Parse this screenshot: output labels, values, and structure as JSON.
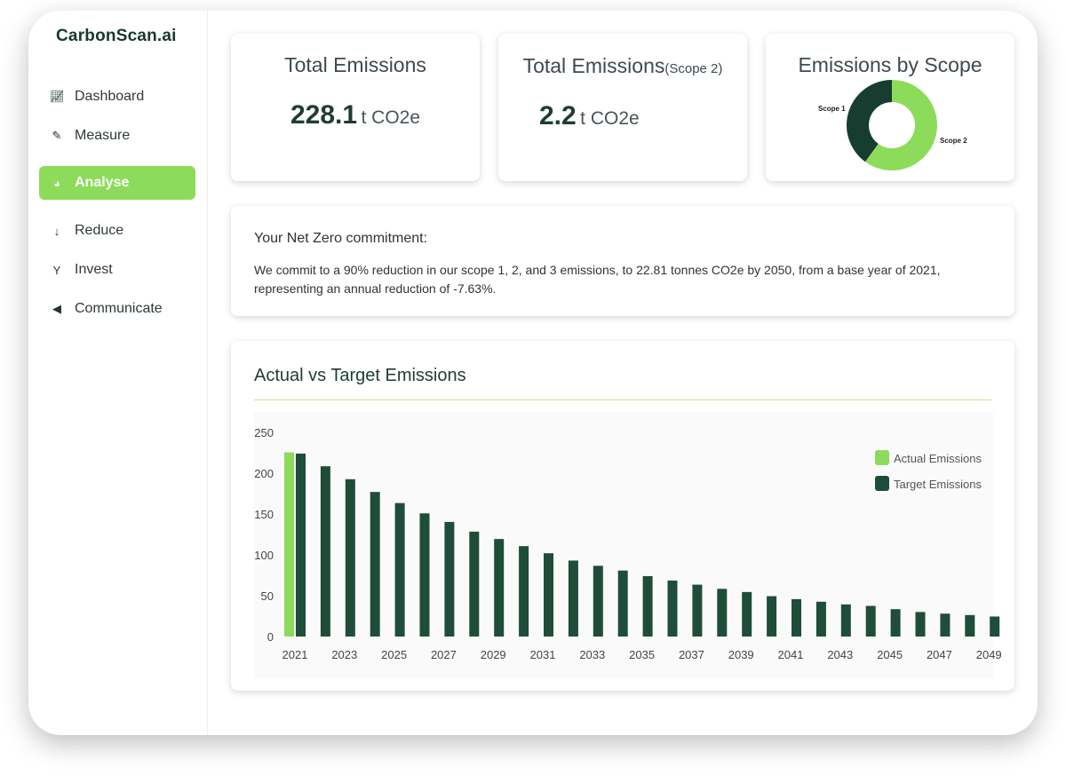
{
  "app": {
    "logo": "CarbonScan.ai"
  },
  "sidebar": {
    "items": [
      {
        "label": "Dashboard",
        "icon": "line-chart-icon",
        "active": false
      },
      {
        "label": "Measure",
        "icon": "ruler-icon",
        "active": false
      },
      {
        "label": "Analyse",
        "icon": "pie-chart-icon",
        "active": true
      },
      {
        "label": "Reduce",
        "icon": "arrow-down-icon",
        "active": false
      },
      {
        "label": "Invest",
        "icon": "sprout-icon",
        "active": false
      },
      {
        "label": "Communicate",
        "icon": "megaphone-icon",
        "active": false
      }
    ]
  },
  "cards": {
    "total": {
      "title": "Total Emissions",
      "value": "228.1",
      "unit": "t CO2e"
    },
    "scope2": {
      "title": "Total Emissions",
      "subtitle": "(Scope 2)",
      "value": "2.2",
      "unit": "t CO2e"
    },
    "by_scope": {
      "title": "Emissions by Scope"
    }
  },
  "commitment": {
    "heading": "Your Net Zero commitment:",
    "text": "We commit to a 90% reduction in our scope 1, 2, and 3 emissions, to 22.81 tonnes CO2e by 2050, from a base year of 2021, representing an annual reduction of -7.63%."
  },
  "colors": {
    "accent": "#8ddb5a",
    "dark": "#1e4d3a",
    "donut_dark": "#173d31"
  },
  "chart_data": [
    {
      "type": "pie",
      "donut": true,
      "categories": [
        "Scope 1",
        "Scope 2"
      ],
      "values": [
        40,
        60
      ],
      "colors": [
        "#173d31",
        "#8ddb5a"
      ]
    },
    {
      "type": "bar",
      "title": "Actual vs Target Emissions",
      "legend": "top-right",
      "ylim": [
        0,
        250
      ],
      "yticks": [
        0,
        50,
        100,
        150,
        200,
        250
      ],
      "categories": [
        2021,
        2022,
        2023,
        2024,
        2025,
        2026,
        2027,
        2028,
        2029,
        2030,
        2031,
        2032,
        2033,
        2034,
        2035,
        2036,
        2037,
        2038,
        2039,
        2040,
        2041,
        2042,
        2043,
        2044,
        2045,
        2046,
        2047,
        2048,
        2049
      ],
      "xtick_labels": [
        "2021",
        "2023",
        "2025",
        "2027",
        "2029",
        "2031",
        "2033",
        "2035",
        "2037",
        "2039",
        "2041",
        "2043",
        "2045",
        "2047",
        "2049"
      ],
      "series": [
        {
          "name": "Actual Emissions",
          "color": "#8ddb5a",
          "values": [
            225.5,
            null,
            null,
            null,
            null,
            null,
            null,
            null,
            null,
            null,
            null,
            null,
            null,
            null,
            null,
            null,
            null,
            null,
            null,
            null,
            null,
            null,
            null,
            null,
            null,
            null,
            null,
            null,
            null
          ]
        },
        {
          "name": "Target Emissions",
          "color": "#1e4d3a",
          "values": [
            224,
            208.5,
            192.6,
            177,
            163.4,
            150.8,
            140.3,
            128.4,
            119.4,
            110.7,
            102,
            93,
            86.6,
            80.8,
            74,
            68.5,
            63.5,
            58.4,
            54.5,
            49.4,
            45.8,
            42.6,
            39.3,
            37.5,
            33.5,
            30,
            28,
            26.3,
            24.5
          ]
        }
      ]
    }
  ]
}
